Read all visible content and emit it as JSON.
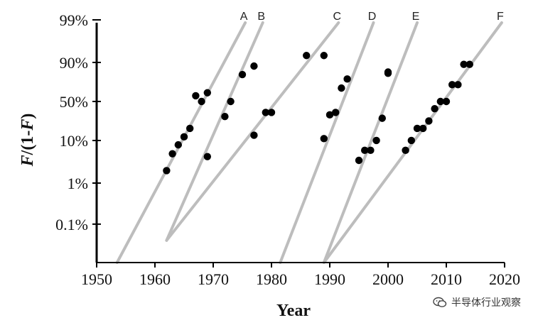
{
  "chart_data": {
    "type": "scatter",
    "xlabel": "Year",
    "ylabel": "F/(1-F)",
    "ylabel_parts": [
      "F",
      "/(1-",
      "F",
      ")"
    ],
    "xlim": [
      1950,
      2020
    ],
    "x_ticks": [
      1950,
      1960,
      1970,
      1980,
      1990,
      2000,
      2010,
      2020
    ],
    "y_scale": "log",
    "y_ticks": [
      {
        "label": "0.1%",
        "value": 0.001
      },
      {
        "label": "1%",
        "value": 0.01
      },
      {
        "label": "10%",
        "value": 0.1
      },
      {
        "label": "50%",
        "value": 0.5
      },
      {
        "label": "90%",
        "value": 0.9
      },
      {
        "label": "99%",
        "value": 0.99
      }
    ],
    "grid": false,
    "colors": {
      "points": "#000000",
      "lines": "#bdbdbd",
      "axis": "#000000"
    },
    "trend_lines": [
      {
        "label": "A",
        "from": [
          1953.5,
          0.0001
        ],
        "to": [
          1975.5,
          0.999
        ]
      },
      {
        "label": "B",
        "from": [
          1962.0,
          0.0004
        ],
        "to": [
          1978.5,
          0.999
        ]
      },
      {
        "label": "C",
        "from": [
          1962.0,
          0.0004
        ],
        "to": [
          1991.5,
          0.999
        ]
      },
      {
        "label": "D",
        "from": [
          1981.5,
          0.0001
        ],
        "to": [
          1997.5,
          0.999
        ]
      },
      {
        "label": "E",
        "from": [
          1989.0,
          0.0001
        ],
        "to": [
          2005.0,
          0.999
        ]
      },
      {
        "label": "F",
        "from": [
          1989.0,
          0.0001
        ],
        "to": [
          2019.5,
          0.999
        ]
      }
    ],
    "points": [
      [
        1962,
        0.02
      ],
      [
        1963,
        0.05
      ],
      [
        1964,
        0.08
      ],
      [
        1965,
        0.12
      ],
      [
        1966,
        0.18
      ],
      [
        1967,
        0.58
      ],
      [
        1968,
        0.5
      ],
      [
        1969,
        0.62
      ],
      [
        1969,
        0.043
      ],
      [
        1972,
        0.3
      ],
      [
        1973,
        0.5
      ],
      [
        1975,
        0.82
      ],
      [
        1977,
        0.88
      ],
      [
        1977,
        0.13
      ],
      [
        1979,
        0.35
      ],
      [
        1980,
        0.35
      ],
      [
        1986,
        0.93
      ],
      [
        1989,
        0.93
      ],
      [
        1989,
        0.11
      ],
      [
        1990,
        0.32
      ],
      [
        1991,
        0.35
      ],
      [
        1992,
        0.68
      ],
      [
        1993,
        0.78
      ],
      [
        1995,
        0.035
      ],
      [
        1996,
        0.06
      ],
      [
        1997,
        0.06
      ],
      [
        1998,
        0.1
      ],
      [
        1999,
        0.28
      ],
      [
        2000,
        0.84
      ],
      [
        2000,
        0.83
      ],
      [
        2003,
        0.06
      ],
      [
        2004,
        0.1
      ],
      [
        2005,
        0.18
      ],
      [
        2006,
        0.18
      ],
      [
        2007,
        0.25
      ],
      [
        2008,
        0.4
      ],
      [
        2009,
        0.5
      ],
      [
        2010,
        0.5
      ],
      [
        2011,
        0.72
      ],
      [
        2012,
        0.72
      ],
      [
        2013,
        0.89
      ],
      [
        2014,
        0.89
      ]
    ]
  },
  "watermark": {
    "text": "半导体行业观察"
  }
}
